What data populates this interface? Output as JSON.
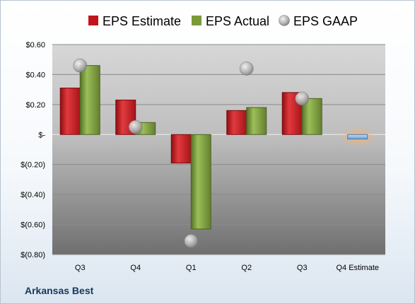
{
  "company": "Arkansas Best",
  "legend": [
    {
      "key": "estimate",
      "label": "EPS Estimate"
    },
    {
      "key": "actual",
      "label": "EPS Actual"
    },
    {
      "key": "gaap",
      "label": "EPS GAAP"
    }
  ],
  "colors": {
    "estimate": "#c0161b",
    "actual": "#7a9a3a",
    "gaap": "#a9a9a9",
    "q4_estimate": "#8db4e2",
    "q4_glow": "#f7b36b"
  },
  "chart_data": {
    "type": "bar",
    "categories": [
      "Q3",
      "Q4",
      "Q1",
      "Q2",
      "Q3",
      "Q4 Estimate"
    ],
    "series": [
      {
        "name": "EPS Estimate",
        "values": [
          0.31,
          0.23,
          -0.19,
          0.16,
          0.28,
          null
        ]
      },
      {
        "name": "EPS Actual",
        "values": [
          0.46,
          0.08,
          -0.63,
          0.18,
          0.24,
          null
        ]
      },
      {
        "name": "EPS GAAP",
        "type": "scatter",
        "values": [
          0.46,
          0.05,
          -0.71,
          0.44,
          0.24,
          null
        ]
      },
      {
        "name": "Q4 Estimate",
        "values": [
          null,
          null,
          null,
          null,
          null,
          -0.03
        ]
      }
    ],
    "ylim": [
      -0.8,
      0.6
    ],
    "yticks": [
      0.6,
      0.4,
      0.2,
      0,
      -0.2,
      -0.4,
      -0.6,
      -0.8
    ],
    "ytick_labels": [
      "$0.60",
      "$0.40",
      "$0.20",
      "$-",
      "$(0.20)",
      "$(0.40)",
      "$(0.60)",
      "$(0.80)"
    ],
    "grid": true,
    "legend_position": "top"
  }
}
